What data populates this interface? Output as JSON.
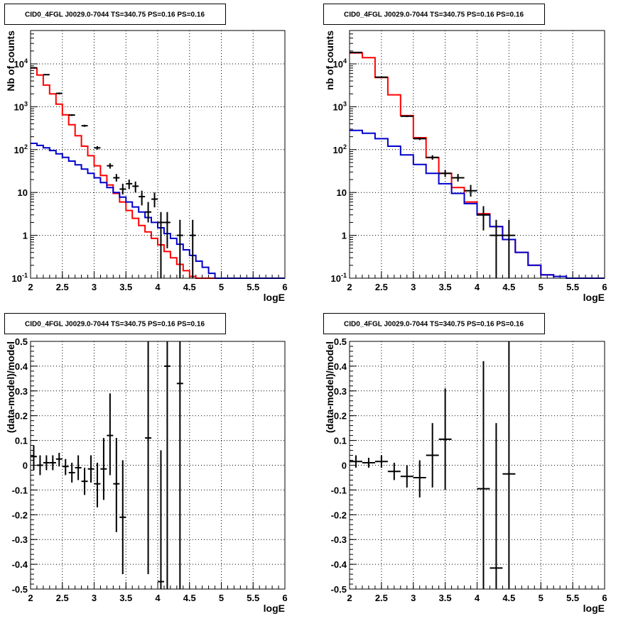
{
  "chart_data": [
    {
      "type": "line",
      "title": "CID0_4FGL J0029.0-7044 TS=340.75 PS=0.16 PS=0.16",
      "xlabel": "logE",
      "ylabel": "Nb of counts",
      "xlim": [
        2,
        6
      ],
      "ylim": [
        0.1,
        60000
      ],
      "yscale": "log",
      "grid": true,
      "x_ticks": [
        "2",
        "2.5",
        "3",
        "3.5",
        "4",
        "4.5",
        "5",
        "5.5",
        "6"
      ],
      "y_ticks": [
        "10^-1",
        "1",
        "10",
        "10^2",
        "10^3",
        "10^4"
      ],
      "bin_edges": [
        2.0,
        2.1,
        2.2,
        2.3,
        2.4,
        2.5,
        2.6,
        2.7,
        2.8,
        2.9,
        3.0,
        3.1,
        3.2,
        3.3,
        3.4,
        3.5,
        3.6,
        3.7,
        3.8,
        3.9,
        4.0,
        4.1,
        4.2,
        4.3,
        4.4,
        4.5,
        4.6,
        4.7,
        4.8,
        4.9,
        5.0,
        5.1,
        5.2,
        5.3,
        5.4,
        5.5,
        5.6,
        5.7,
        5.8,
        5.9,
        6.0
      ],
      "series": [
        {
          "color": "#ff0000",
          "values": [
            8000,
            5500,
            3200,
            2000,
            1150,
            650,
            380,
            210,
            120,
            72,
            42,
            25,
            15,
            9.5,
            6,
            3.8,
            2.5,
            1.7,
            1.2,
            0.85,
            0.6,
            0.42,
            0.3,
            0.21,
            0.15,
            0.11,
            0.1,
            0.1,
            0.1,
            0.1,
            0.1,
            0.1,
            0.1,
            0.1,
            0.1,
            0.1,
            0.1,
            0.1,
            0.1,
            0.1
          ]
        },
        {
          "color": "#0000cc",
          "values": [
            140,
            125,
            110,
            95,
            80,
            66,
            54,
            44,
            35,
            28,
            22,
            17,
            13,
            10,
            7.8,
            6,
            4.6,
            3.5,
            2.6,
            2,
            1.5,
            1.1,
            0.85,
            0.62,
            0.46,
            0.34,
            0.25,
            0.18,
            0.13,
            0.1,
            0.1,
            0.1,
            0.1,
            0.1,
            0.1,
            0.1,
            0.1,
            0.1,
            0.1,
            0.1
          ]
        }
      ],
      "points": [
        {
          "x": 2.05,
          "y": 8100,
          "lo": 7900,
          "hi": 8300,
          "xerr": 0.05
        },
        {
          "x": 2.25,
          "y": 5600,
          "lo": 5450,
          "hi": 5750,
          "xerr": 0.05
        },
        {
          "x": 2.45,
          "y": 2050,
          "lo": 1950,
          "hi": 2150,
          "xerr": 0.05
        },
        {
          "x": 2.65,
          "y": 640,
          "lo": 610,
          "hi": 670,
          "xerr": 0.05
        },
        {
          "x": 2.85,
          "y": 360,
          "lo": 340,
          "hi": 380,
          "xerr": 0.05
        },
        {
          "x": 3.05,
          "y": 110,
          "lo": 100,
          "hi": 120,
          "xerr": 0.05
        },
        {
          "x": 3.25,
          "y": 42,
          "lo": 36,
          "hi": 48,
          "xerr": 0.05
        },
        {
          "x": 3.35,
          "y": 22,
          "lo": 18,
          "hi": 27,
          "xerr": 0.05
        },
        {
          "x": 3.45,
          "y": 12,
          "lo": 9,
          "hi": 16,
          "xerr": 0.05
        },
        {
          "x": 3.55,
          "y": 16,
          "lo": 12,
          "hi": 20,
          "xerr": 0.05
        },
        {
          "x": 3.65,
          "y": 14,
          "lo": 10,
          "hi": 18,
          "xerr": 0.05
        },
        {
          "x": 3.75,
          "y": 8,
          "lo": 5,
          "hi": 11,
          "xerr": 0.05
        },
        {
          "x": 3.85,
          "y": 3.5,
          "lo": 2,
          "hi": 6,
          "xerr": 0.05
        },
        {
          "x": 3.95,
          "y": 7,
          "lo": 4.5,
          "hi": 10,
          "xerr": 0.05
        },
        {
          "x": 4.05,
          "y": 2,
          "lo": 0.1,
          "hi": 3.5,
          "xerr": 0.05
        },
        {
          "x": 4.15,
          "y": 2,
          "lo": 0.5,
          "hi": 3.5,
          "xerr": 0.05
        },
        {
          "x": 4.35,
          "y": 1,
          "lo": 0.1,
          "hi": 2.3,
          "xerr": 0.05
        },
        {
          "x": 4.55,
          "y": 1,
          "lo": 0.1,
          "hi": 2.3,
          "xerr": 0.05
        }
      ]
    },
    {
      "type": "line",
      "title": "CID0_4FGL J0029.0-7044 TS=340.75 PS=0.16 PS=0.16",
      "xlabel": "logE",
      "ylabel": "nb of counts",
      "xlim": [
        2,
        6
      ],
      "ylim": [
        0.1,
        60000
      ],
      "yscale": "log",
      "grid": true,
      "x_ticks": [
        "2",
        "2.5",
        "3",
        "3.5",
        "4",
        "4.5",
        "5",
        "5.5",
        "6"
      ],
      "y_ticks": [
        "10^-1",
        "1",
        "10",
        "10^2",
        "10^3",
        "10^4"
      ],
      "bin_edges": [
        2.0,
        2.2,
        2.4,
        2.6,
        2.8,
        3.0,
        3.2,
        3.4,
        3.6,
        3.8,
        4.0,
        4.2,
        4.4,
        4.6,
        4.8,
        5.0,
        5.2,
        5.4,
        5.6,
        5.8,
        6.0
      ],
      "series": [
        {
          "color": "#ff0000",
          "values": [
            18000,
            14000,
            4800,
            1900,
            620,
            190,
            65,
            28,
            13,
            6,
            3.2,
            1.6,
            0.8,
            0.4,
            0.2,
            0.12,
            0.11,
            0.1,
            0.1,
            0.1
          ]
        },
        {
          "color": "#0000cc",
          "values": [
            280,
            240,
            180,
            120,
            75,
            45,
            28,
            16,
            9.5,
            5.5,
            3.0,
            1.6,
            0.8,
            0.4,
            0.2,
            0.12,
            0.11,
            0.1,
            0.1,
            0.1
          ]
        }
      ],
      "points": [
        {
          "x": 2.1,
          "y": 18500,
          "lo": 18200,
          "hi": 18800,
          "xerr": 0.1
        },
        {
          "x": 2.5,
          "y": 4900,
          "lo": 4750,
          "hi": 5050,
          "xerr": 0.1
        },
        {
          "x": 2.9,
          "y": 600,
          "lo": 575,
          "hi": 625,
          "xerr": 0.1
        },
        {
          "x": 3.1,
          "y": 180,
          "lo": 167,
          "hi": 193,
          "xerr": 0.1
        },
        {
          "x": 3.3,
          "y": 66,
          "lo": 58,
          "hi": 74,
          "xerr": 0.1
        },
        {
          "x": 3.5,
          "y": 28,
          "lo": 23,
          "hi": 33,
          "xerr": 0.1
        },
        {
          "x": 3.7,
          "y": 22,
          "lo": 18,
          "hi": 27,
          "xerr": 0.1
        },
        {
          "x": 3.9,
          "y": 11,
          "lo": 8,
          "hi": 15,
          "xerr": 0.1
        },
        {
          "x": 4.1,
          "y": 3,
          "lo": 1.3,
          "hi": 4.8,
          "xerr": 0.1
        },
        {
          "x": 4.3,
          "y": 1,
          "lo": 0.1,
          "hi": 2.3,
          "xerr": 0.1
        },
        {
          "x": 4.5,
          "y": 1,
          "lo": 0.1,
          "hi": 2.3,
          "xerr": 0.1
        }
      ]
    },
    {
      "type": "scatter",
      "title": "CID0_4FGL J0029.0-7044 TS=340.75 PS=0.16 PS=0.16",
      "xlabel": "logE",
      "ylabel": "(data-model)/model",
      "xlim": [
        2,
        6
      ],
      "ylim": [
        -0.5,
        0.5
      ],
      "grid": true,
      "x_ticks": [
        "2",
        "2.5",
        "3",
        "3.5",
        "4",
        "4.5",
        "5",
        "5.5",
        "6"
      ],
      "y_ticks": [
        "-0.5",
        "-0.4",
        "-0.3",
        "-0.2",
        "-0.1",
        "0",
        "0.1",
        "0.2",
        "0.3",
        "0.4",
        "0.5"
      ],
      "points": [
        {
          "x": 2.05,
          "y": 0.035,
          "lo": -0.02,
          "hi": 0.08,
          "xerr": 0.05
        },
        {
          "x": 2.15,
          "y": 0.0,
          "lo": -0.04,
          "hi": 0.04,
          "xerr": 0.05
        },
        {
          "x": 2.25,
          "y": 0.01,
          "lo": -0.02,
          "hi": 0.04,
          "xerr": 0.05
        },
        {
          "x": 2.35,
          "y": 0.01,
          "lo": -0.02,
          "hi": 0.04,
          "xerr": 0.05
        },
        {
          "x": 2.45,
          "y": 0.025,
          "lo": -0.005,
          "hi": 0.05,
          "xerr": 0.05
        },
        {
          "x": 2.55,
          "y": -0.005,
          "lo": -0.04,
          "hi": 0.025,
          "xerr": 0.05
        },
        {
          "x": 2.65,
          "y": -0.03,
          "lo": -0.07,
          "hi": 0.01,
          "xerr": 0.05
        },
        {
          "x": 2.75,
          "y": -0.01,
          "lo": -0.06,
          "hi": 0.04,
          "xerr": 0.05
        },
        {
          "x": 2.85,
          "y": -0.065,
          "lo": -0.12,
          "hi": -0.01,
          "xerr": 0.05
        },
        {
          "x": 2.95,
          "y": -0.015,
          "lo": -0.07,
          "hi": 0.04,
          "xerr": 0.05
        },
        {
          "x": 3.05,
          "y": -0.075,
          "lo": -0.17,
          "hi": 0.01,
          "xerr": 0.05
        },
        {
          "x": 3.15,
          "y": -0.015,
          "lo": -0.14,
          "hi": 0.11,
          "xerr": 0.05
        },
        {
          "x": 3.25,
          "y": 0.12,
          "lo": -0.04,
          "hi": 0.29,
          "xerr": 0.05
        },
        {
          "x": 3.35,
          "y": -0.075,
          "lo": -0.27,
          "hi": 0.11,
          "xerr": 0.05
        },
        {
          "x": 3.45,
          "y": -0.21,
          "lo": -0.44,
          "hi": 0.02,
          "xerr": 0.05
        },
        {
          "x": 3.85,
          "y": 0.11,
          "lo": -0.44,
          "hi": 0.5,
          "xerr": 0.05
        },
        {
          "x": 4.05,
          "y": -0.47,
          "lo": -0.5,
          "hi": 0.06,
          "xerr": 0.05
        },
        {
          "x": 4.15,
          "y": 0.4,
          "lo": -0.5,
          "hi": 0.5,
          "xerr": 0.05
        },
        {
          "x": 4.35,
          "y": 0.33,
          "lo": -0.5,
          "hi": 0.5,
          "xerr": 0.05
        }
      ]
    },
    {
      "type": "scatter",
      "title": "CID0_4FGL J0029.0-7044 TS=340.75 PS=0.16 PS=0.16",
      "xlabel": "logE",
      "ylabel": "(data-model)/model",
      "xlim": [
        2,
        6
      ],
      "ylim": [
        -0.5,
        0.5
      ],
      "grid": true,
      "x_ticks": [
        "2",
        "2.5",
        "3",
        "3.5",
        "4",
        "4.5",
        "5",
        "5.5",
        "6"
      ],
      "y_ticks": [
        "-0.5",
        "-0.4",
        "-0.3",
        "-0.2",
        "-0.1",
        "0",
        "0.1",
        "0.2",
        "0.3",
        "0.4",
        "0.5"
      ],
      "points": [
        {
          "x": 2.1,
          "y": 0.015,
          "lo": -0.01,
          "hi": 0.04,
          "xerr": 0.1
        },
        {
          "x": 2.3,
          "y": 0.01,
          "lo": -0.01,
          "hi": 0.03,
          "xerr": 0.1
        },
        {
          "x": 2.5,
          "y": 0.015,
          "lo": -0.01,
          "hi": 0.04,
          "xerr": 0.1
        },
        {
          "x": 2.7,
          "y": -0.025,
          "lo": -0.06,
          "hi": 0.01,
          "xerr": 0.1
        },
        {
          "x": 2.9,
          "y": -0.045,
          "lo": -0.09,
          "hi": 0.0,
          "xerr": 0.1
        },
        {
          "x": 3.1,
          "y": -0.05,
          "lo": -0.13,
          "hi": 0.02,
          "xerr": 0.1
        },
        {
          "x": 3.3,
          "y": 0.04,
          "lo": -0.09,
          "hi": 0.17,
          "xerr": 0.1
        },
        {
          "x": 3.5,
          "y": 0.105,
          "lo": -0.1,
          "hi": 0.31,
          "xerr": 0.1
        },
        {
          "x": 4.1,
          "y": -0.095,
          "lo": -0.5,
          "hi": 0.42,
          "xerr": 0.1
        },
        {
          "x": 4.3,
          "y": -0.415,
          "lo": -0.5,
          "hi": 0.17,
          "xerr": 0.1
        },
        {
          "x": 4.5,
          "y": -0.035,
          "lo": -0.5,
          "hi": 0.5,
          "xerr": 0.1
        }
      ]
    }
  ]
}
